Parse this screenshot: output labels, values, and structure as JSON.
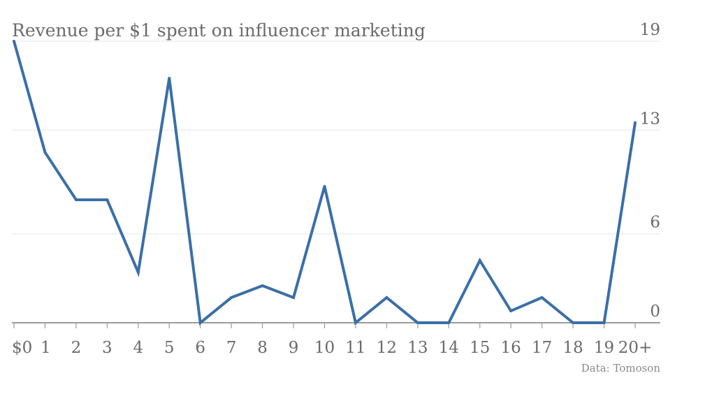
{
  "chart_data": {
    "type": "line",
    "title": "Revenue per $1 spent on influencer marketing",
    "source": "Data: Tomoson",
    "xlabel": "",
    "ylabel": "",
    "categories": [
      "$0",
      "1",
      "2",
      "3",
      "4",
      "5",
      "6",
      "7",
      "8",
      "9",
      "10",
      "11",
      "12",
      "13",
      "14",
      "15",
      "16",
      "17",
      "18",
      "19",
      "20+"
    ],
    "series": [
      {
        "values": [
          19,
          11.5,
          8.3,
          8.3,
          3.4,
          16.5,
          0,
          1.7,
          2.5,
          1.7,
          9.2,
          0,
          1.7,
          0,
          0,
          4.2,
          0.8,
          1.7,
          0,
          0,
          13.5
        ]
      }
    ],
    "yticks": [
      0,
      6,
      13,
      19
    ],
    "ytick_labels": [
      "0",
      "6",
      "13",
      "19"
    ],
    "ylim": [
      0,
      19
    ],
    "grid": true,
    "legend": "none",
    "colors": {
      "line": "#3a6fa8",
      "grid": "#e6e6e6",
      "baseline": "#7a7a7a",
      "text": "#6a6a6a"
    }
  }
}
